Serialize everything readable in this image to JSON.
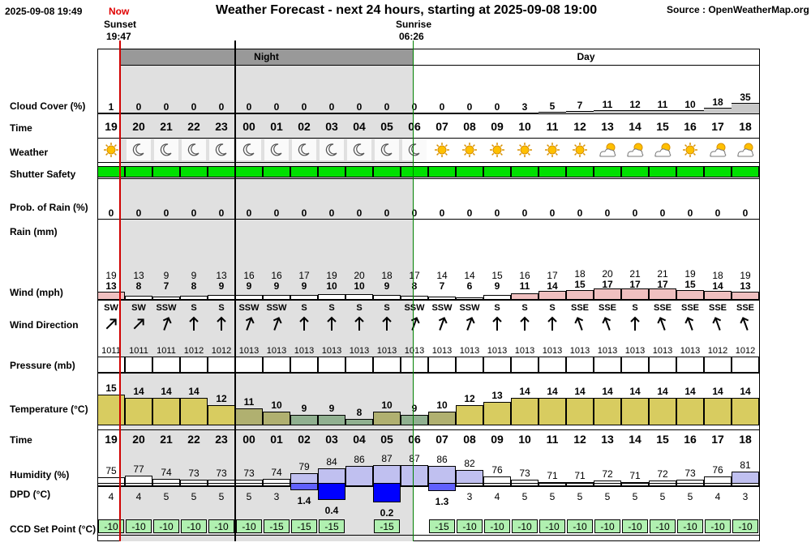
{
  "header": {
    "timestamp": "2025-09-08 19:49",
    "now_label": "Now",
    "title": "Weather Forecast - next 24 hours, starting at 2025-09-08 19:00",
    "source": "Source : OpenWeatherMap.org",
    "sunset_label": "Sunset",
    "sunset_time": "19:47",
    "sunrise_label": "Sunrise",
    "sunrise_time": "06:26",
    "night_label": "Night",
    "day_label": "Day"
  },
  "labels": {
    "cloud": "Cloud Cover (%)",
    "time": "Time",
    "weather": "Weather",
    "shutter": "Shutter Safety",
    "prob_rain": "Prob. of Rain (%)",
    "rain": "Rain (mm)",
    "wind": "Wind (mph)",
    "wind_dir": "Wind Direction",
    "pressure": "Pressure (mb)",
    "temperature": "Temperature (°C)",
    "time2": "Time",
    "humidity": "Humidity (%)",
    "dpd": "DPD (°C)",
    "ccd": "CCD Set Point (°C)"
  },
  "colors": {
    "shutter_safe": "#00e000",
    "night_bg": "#e0e0e0",
    "night_band": "#999999",
    "now_line": "#d00000",
    "sunrise_line": "#008000",
    "temp_warm": "#d8cc60",
    "temp_mild": "#b0b070",
    "temp_cool": "#90b090",
    "wind_bar": "#f0c0c0",
    "humidity_bar": "#c0c0f0",
    "dpd_bar_dark": "#0000ff",
    "dpd_bar_light": "#6060ff",
    "ccd_bg": "#b0f0b0"
  },
  "hours": [
    "19",
    "20",
    "21",
    "22",
    "23",
    "00",
    "01",
    "02",
    "03",
    "04",
    "05",
    "06",
    "07",
    "08",
    "09",
    "10",
    "11",
    "12",
    "13",
    "14",
    "15",
    "16",
    "17",
    "18"
  ],
  "cloud_cover": [
    1,
    0,
    0,
    0,
    0,
    0,
    0,
    0,
    0,
    0,
    0,
    0,
    0,
    0,
    0,
    3,
    5,
    7,
    11,
    12,
    11,
    10,
    18,
    35
  ],
  "weather_icons": [
    "sun-icon",
    "moon-icon",
    "moon-icon",
    "moon-icon",
    "moon-icon",
    "moon-icon",
    "moon-icon",
    "moon-icon",
    "moon-icon",
    "moon-icon",
    "moon-icon",
    "moon-icon",
    "sun-icon",
    "sun-icon",
    "sun-icon",
    "sun-icon",
    "sun-icon",
    "sun-icon",
    "partly-cloudy-icon",
    "partly-cloudy-icon",
    "partly-cloudy-icon",
    "sun-icon",
    "partly-cloudy-icon",
    "partly-cloudy-icon"
  ],
  "prob_rain": [
    0,
    0,
    0,
    0,
    0,
    0,
    0,
    0,
    0,
    0,
    0,
    0,
    0,
    0,
    0,
    0,
    0,
    0,
    0,
    0,
    0,
    0,
    0,
    0
  ],
  "wind_gust": [
    19,
    13,
    9,
    9,
    13,
    16,
    16,
    17,
    19,
    20,
    18,
    17,
    14,
    14,
    15,
    16,
    17,
    18,
    20,
    21,
    21,
    19,
    18,
    19
  ],
  "wind_speed": [
    13,
    8,
    7,
    8,
    9,
    9,
    9,
    9,
    10,
    10,
    9,
    8,
    7,
    6,
    9,
    11,
    14,
    15,
    17,
    17,
    17,
    15,
    14,
    13
  ],
  "wind_dir": [
    "SW",
    "SW",
    "SSW",
    "S",
    "S",
    "SSW",
    "SSW",
    "S",
    "S",
    "S",
    "S",
    "SSW",
    "SSW",
    "SSW",
    "S",
    "S",
    "S",
    "SSE",
    "SSE",
    "S",
    "SSE",
    "SSE",
    "SSE",
    "SSE"
  ],
  "wind_angle": [
    45,
    45,
    20,
    0,
    0,
    20,
    20,
    0,
    0,
    0,
    0,
    20,
    20,
    20,
    0,
    0,
    0,
    -20,
    -20,
    0,
    -20,
    -20,
    -20,
    -20
  ],
  "pressure": [
    1011,
    1011,
    1011,
    1012,
    1012,
    1013,
    1013,
    1013,
    1013,
    1013,
    1013,
    1013,
    1013,
    1013,
    1013,
    1013,
    1013,
    1013,
    1013,
    1013,
    1013,
    1013,
    1012,
    1012
  ],
  "temperature": [
    15,
    14,
    14,
    14,
    12,
    11,
    10,
    9,
    9,
    8,
    10,
    9,
    10,
    12,
    13,
    14,
    14,
    14,
    14,
    14,
    14,
    14,
    14,
    14
  ],
  "humidity": [
    75,
    77,
    74,
    73,
    73,
    73,
    74,
    79,
    84,
    86,
    87,
    87,
    86,
    82,
    76,
    73,
    71,
    71,
    72,
    71,
    72,
    73,
    76,
    81
  ],
  "dpd": [
    "4",
    "4",
    "5",
    "5",
    "5",
    "5",
    "3",
    "1.4",
    "0.4",
    "",
    "0.2",
    "",
    "1.3",
    "3",
    "4",
    "5",
    "5",
    "5",
    "5",
    "5",
    "5",
    "5",
    "4",
    "3"
  ],
  "ccd": [
    "-10",
    "-10",
    "-10",
    "-10",
    "-10",
    "-10",
    "-15",
    "-15",
    "-15",
    "",
    "-15",
    "",
    "-15",
    "-10",
    "-10",
    "-10",
    "-10",
    "-10",
    "-10",
    "-10",
    "-10",
    "-10",
    "-10",
    "-10"
  ]
}
